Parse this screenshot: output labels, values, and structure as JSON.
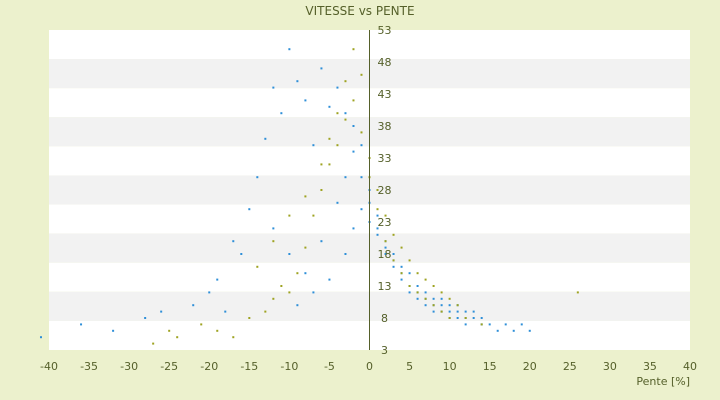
{
  "chart_data": {
    "type": "scatter",
    "title": "VITESSE vs PENTE",
    "xlabel": "Pente [%]",
    "ylabel": "",
    "xlim": [
      -40,
      40
    ],
    "ylim": [
      3,
      53
    ],
    "x_ticks": [
      -40,
      -35,
      -30,
      -25,
      -20,
      -15,
      -10,
      -5,
      0,
      5,
      10,
      15,
      20,
      25,
      30,
      35,
      40
    ],
    "y_ticks": [
      3,
      8,
      13,
      18,
      23,
      28,
      33,
      38,
      43,
      48,
      53
    ],
    "y_tick_labels_visible": [
      "3",
      "8",
      "13",
      "18",
      "23",
      "28",
      "33",
      "38",
      "43",
      "48",
      "53"
    ],
    "grid": "alternating horizontal bands",
    "legend": "none",
    "colors": {
      "background": "#ecf1cd",
      "plot_band_light": "#ffffff",
      "plot_band_dark": "#f2f2f2",
      "series_blue": "#2e8fd8",
      "series_olive": "#9ea321",
      "axis": "#55602a"
    },
    "series": [
      {
        "color": "#2e8fd8",
        "points": [
          [
            -41,
            5
          ],
          [
            -36,
            7
          ],
          [
            -32,
            6
          ],
          [
            -28,
            8
          ],
          [
            -26,
            9
          ],
          [
            -22,
            10
          ],
          [
            -20,
            12
          ],
          [
            -19,
            14
          ],
          [
            -18,
            9
          ],
          [
            -17,
            20
          ],
          [
            -16,
            18
          ],
          [
            -15,
            25
          ],
          [
            -14,
            30
          ],
          [
            -13,
            36
          ],
          [
            -12,
            44
          ],
          [
            -11,
            40
          ],
          [
            -10,
            50
          ],
          [
            -9,
            45
          ],
          [
            -8,
            42
          ],
          [
            -7,
            35
          ],
          [
            -6,
            47
          ],
          [
            -5,
            41
          ],
          [
            -4,
            44
          ],
          [
            -3,
            40
          ],
          [
            -2,
            38
          ],
          [
            -1,
            30
          ],
          [
            0,
            26
          ],
          [
            1,
            22
          ],
          [
            2,
            18
          ],
          [
            3,
            16
          ],
          [
            4,
            14
          ],
          [
            5,
            12
          ],
          [
            6,
            11
          ],
          [
            7,
            10
          ],
          [
            8,
            9
          ],
          [
            9,
            9
          ],
          [
            10,
            8
          ],
          [
            11,
            8
          ],
          [
            12,
            7
          ],
          [
            13,
            8
          ],
          [
            14,
            7
          ],
          [
            15,
            7
          ],
          [
            16,
            6
          ],
          [
            17,
            7
          ],
          [
            18,
            6
          ],
          [
            19,
            7
          ],
          [
            20,
            6
          ],
          [
            -12,
            22
          ],
          [
            -10,
            18
          ],
          [
            -8,
            15
          ],
          [
            -6,
            20
          ],
          [
            -4,
            26
          ],
          [
            -3,
            30
          ],
          [
            -2,
            34
          ],
          [
            -1,
            35
          ],
          [
            0,
            28
          ],
          [
            1,
            24
          ],
          [
            2,
            20
          ],
          [
            3,
            17
          ],
          [
            4,
            15
          ],
          [
            5,
            13
          ],
          [
            6,
            12
          ],
          [
            7,
            11
          ],
          [
            8,
            10
          ],
          [
            9,
            10
          ],
          [
            10,
            9
          ],
          [
            11,
            9
          ],
          [
            12,
            8
          ],
          [
            -9,
            10
          ],
          [
            -7,
            12
          ],
          [
            -5,
            14
          ],
          [
            -3,
            18
          ],
          [
            -2,
            22
          ],
          [
            -1,
            25
          ],
          [
            0,
            23
          ],
          [
            1,
            21
          ],
          [
            2,
            19
          ],
          [
            3,
            18
          ],
          [
            4,
            16
          ],
          [
            5,
            15
          ],
          [
            6,
            13
          ],
          [
            7,
            12
          ],
          [
            8,
            11
          ],
          [
            9,
            11
          ],
          [
            10,
            10
          ],
          [
            11,
            10
          ],
          [
            12,
            9
          ],
          [
            13,
            9
          ],
          [
            14,
            8
          ]
        ]
      },
      {
        "color": "#9ea321",
        "points": [
          [
            -27,
            4
          ],
          [
            -25,
            6
          ],
          [
            -24,
            5
          ],
          [
            -21,
            7
          ],
          [
            -19,
            6
          ],
          [
            -17,
            5
          ],
          [
            -15,
            8
          ],
          [
            -13,
            9
          ],
          [
            -12,
            11
          ],
          [
            -11,
            13
          ],
          [
            -10,
            12
          ],
          [
            -9,
            15
          ],
          [
            -8,
            19
          ],
          [
            -7,
            24
          ],
          [
            -6,
            28
          ],
          [
            -5,
            32
          ],
          [
            -4,
            35
          ],
          [
            -3,
            39
          ],
          [
            -2,
            42
          ],
          [
            -1,
            37
          ],
          [
            0,
            30
          ],
          [
            1,
            25
          ],
          [
            2,
            20
          ],
          [
            3,
            17
          ],
          [
            4,
            15
          ],
          [
            5,
            13
          ],
          [
            6,
            12
          ],
          [
            7,
            11
          ],
          [
            8,
            10
          ],
          [
            9,
            9
          ],
          [
            10,
            8
          ],
          [
            12,
            8
          ],
          [
            14,
            7
          ],
          [
            26,
            12
          ],
          [
            -14,
            16
          ],
          [
            -12,
            20
          ],
          [
            -10,
            24
          ],
          [
            -8,
            27
          ],
          [
            -6,
            32
          ],
          [
            -5,
            36
          ],
          [
            -4,
            40
          ],
          [
            -3,
            45
          ],
          [
            -2,
            50
          ],
          [
            -1,
            46
          ],
          [
            0,
            33
          ],
          [
            1,
            28
          ],
          [
            2,
            24
          ],
          [
            3,
            21
          ],
          [
            4,
            19
          ],
          [
            5,
            17
          ],
          [
            6,
            15
          ],
          [
            7,
            14
          ],
          [
            8,
            13
          ],
          [
            9,
            12
          ],
          [
            10,
            11
          ],
          [
            11,
            10
          ]
        ]
      }
    ]
  }
}
